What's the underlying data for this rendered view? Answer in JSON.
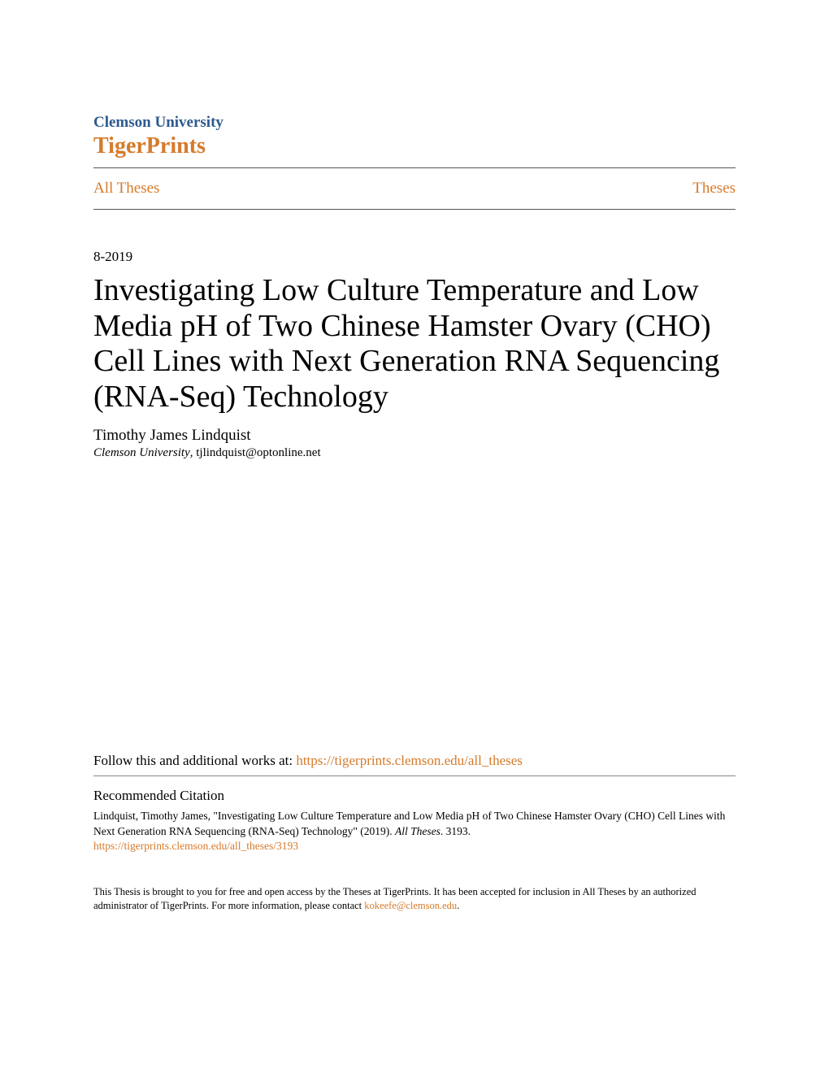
{
  "header": {
    "university": "Clemson University",
    "repository": "TigerPrints",
    "nav_left": "All Theses",
    "nav_right": "Theses"
  },
  "meta": {
    "date": "8-2019"
  },
  "title": "Investigating Low Culture Temperature and Low Media pH of Two Chinese Hamster Ovary (CHO) Cell Lines with Next Generation RNA Sequencing (RNA-Seq) Technology",
  "author": {
    "name": "Timothy James Lindquist",
    "affiliation_italic": "Clemson University",
    "affiliation_rest": ", tjlindquist@optonline.net"
  },
  "follow": {
    "prefix": "Follow this and additional works at: ",
    "link_text": "https://tigerprints.clemson.edu/all_theses"
  },
  "citation": {
    "heading": "Recommended Citation",
    "text_part1": "Lindquist, Timothy James, \"Investigating Low Culture Temperature and Low Media pH of Two Chinese Hamster Ovary (CHO) Cell Lines with Next Generation RNA Sequencing (RNA-Seq) Technology\" (2019). ",
    "text_italic": "All Theses",
    "text_part2": ". 3193.",
    "link": "https://tigerprints.clemson.edu/all_theses/3193"
  },
  "footer": {
    "text_part1": "This Thesis is brought to you for free and open access by the Theses at TigerPrints. It has been accepted for inclusion in All Theses by an authorized administrator of TigerPrints. For more information, please contact ",
    "email": "kokeefe@clemson.edu",
    "text_part2": "."
  },
  "colors": {
    "university_blue": "#2d5a8f",
    "orange": "#d67a2a",
    "text_black": "#000000",
    "divider": "#555555",
    "thin_divider": "#888888",
    "background": "#ffffff"
  },
  "typography": {
    "title_fontsize": 38,
    "body_fontsize": 17,
    "small_fontsize": 13.5,
    "footer_fontsize": 12.5,
    "university_fontsize": 19,
    "repository_fontsize": 28
  }
}
